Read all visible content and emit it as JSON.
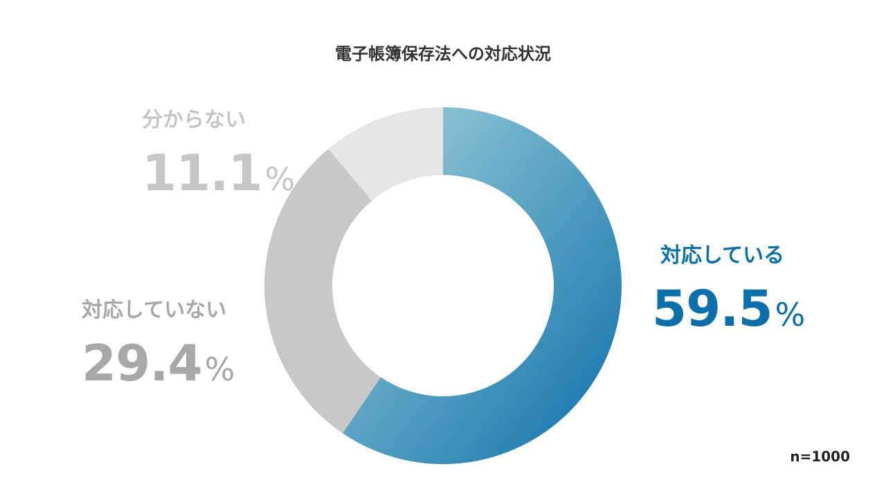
{
  "chart_data": {
    "type": "pie",
    "title": "電子帳簿保存法への対応状況",
    "slices": [
      {
        "label": "対応している",
        "value": 59.5,
        "display": "59.5",
        "color_from": "#a4d2da",
        "color_to": "#0a6faa"
      },
      {
        "label": "対応していない",
        "value": 29.4,
        "display": "29.4",
        "color": "#c8c8c8"
      },
      {
        "label": "分からない",
        "value": 11.1,
        "display": "11.1",
        "color": "#e6e6e6"
      }
    ],
    "unit": "%",
    "sample_note": "n=1000"
  }
}
